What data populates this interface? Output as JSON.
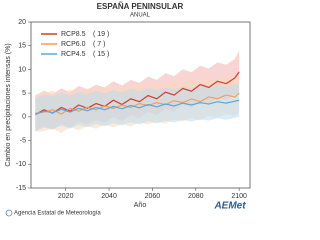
{
  "chart_data": {
    "type": "line",
    "title": "ESPAÑA PENINSULAR",
    "subtitle": "ANUAL",
    "ylabel": "Cambio en precipitaciones intensas (%)",
    "xlabel": "Año",
    "x": [
      2006,
      2010,
      2014,
      2018,
      2022,
      2026,
      2030,
      2034,
      2038,
      2042,
      2046,
      2050,
      2054,
      2058,
      2062,
      2066,
      2070,
      2074,
      2078,
      2082,
      2086,
      2090,
      2094,
      2098,
      2100
    ],
    "xlim": [
      2004,
      2105
    ],
    "xticks": [
      2020,
      2040,
      2060,
      2080,
      2100
    ],
    "ylim": [
      -15,
      20
    ],
    "yticks": [
      -15,
      -10,
      -5,
      0,
      5,
      10,
      15,
      20
    ],
    "series": [
      {
        "name": "RCP8.5",
        "models": "( 19 )",
        "color": "#d63a2a",
        "band_color": "#f2b3ae",
        "values": [
          0.5,
          1.5,
          0.8,
          2.0,
          1.2,
          2.5,
          1.8,
          2.8,
          2.2,
          3.5,
          2.6,
          3.8,
          3.2,
          4.5,
          3.8,
          5.2,
          4.6,
          6.0,
          5.4,
          6.8,
          6.2,
          7.5,
          7.0,
          8.2,
          9.5
        ],
        "upper": [
          4.5,
          5.5,
          4.8,
          6.0,
          5.2,
          6.5,
          5.8,
          6.8,
          6.2,
          7.5,
          6.6,
          7.8,
          7.2,
          8.5,
          7.8,
          9.2,
          8.6,
          10.0,
          9.4,
          10.8,
          10.2,
          11.5,
          11.0,
          12.2,
          14.0
        ],
        "lower": [
          -3.0,
          -2.0,
          -2.7,
          -1.5,
          -2.3,
          -1.0,
          -1.7,
          -0.7,
          -1.3,
          0.0,
          -0.9,
          0.3,
          -0.3,
          1.0,
          0.3,
          1.7,
          1.1,
          2.5,
          1.9,
          3.3,
          2.7,
          4.0,
          3.5,
          4.7,
          5.0
        ]
      },
      {
        "name": "RCP6.0",
        "models": "( 7 )",
        "color": "#f0a060",
        "band_color": "#f9d9b8",
        "values": [
          0.8,
          1.0,
          1.5,
          0.6,
          1.8,
          1.2,
          2.0,
          1.5,
          2.3,
          1.8,
          2.5,
          2.0,
          2.8,
          2.4,
          3.0,
          2.6,
          3.4,
          3.0,
          3.8,
          3.2,
          4.2,
          3.8,
          4.6,
          4.2,
          5.0
        ],
        "upper": [
          4.8,
          5.0,
          5.5,
          4.6,
          5.8,
          5.2,
          6.0,
          5.5,
          6.3,
          5.8,
          6.5,
          6.0,
          6.8,
          6.4,
          7.0,
          6.6,
          7.4,
          7.0,
          7.8,
          7.2,
          8.2,
          7.8,
          8.6,
          8.2,
          9.0
        ],
        "lower": [
          -3.2,
          -3.0,
          -2.5,
          -3.4,
          -2.2,
          -2.8,
          -2.0,
          -2.5,
          -1.7,
          -2.2,
          -1.5,
          -2.0,
          -1.2,
          -1.6,
          -1.0,
          -1.4,
          -0.6,
          -1.0,
          -0.2,
          -0.8,
          0.2,
          -0.2,
          0.6,
          0.2,
          1.0
        ]
      },
      {
        "name": "RCP4.5",
        "models": "( 15 )",
        "color": "#5aa8dc",
        "band_color": "#bcdcf2",
        "values": [
          0.5,
          1.2,
          0.9,
          1.6,
          1.0,
          1.8,
          1.3,
          2.0,
          1.5,
          2.2,
          1.7,
          2.4,
          1.9,
          2.6,
          2.1,
          2.7,
          2.3,
          2.9,
          2.5,
          3.0,
          2.7,
          3.2,
          2.9,
          3.3,
          3.5
        ],
        "upper": [
          4.0,
          4.7,
          4.4,
          5.1,
          4.5,
          5.3,
          4.8,
          5.5,
          5.0,
          5.7,
          5.2,
          5.9,
          5.4,
          6.1,
          5.6,
          6.2,
          5.8,
          6.4,
          6.0,
          6.5,
          6.2,
          6.7,
          6.4,
          6.8,
          7.0
        ],
        "lower": [
          -3.0,
          -2.3,
          -2.6,
          -1.9,
          -2.5,
          -1.7,
          -2.2,
          -1.5,
          -2.0,
          -1.3,
          -1.8,
          -1.1,
          -1.6,
          -0.9,
          -1.4,
          -0.8,
          -1.2,
          -0.6,
          -1.0,
          -0.5,
          -0.8,
          -0.3,
          -0.6,
          -0.2,
          0.0
        ]
      }
    ]
  },
  "footer": {
    "agency": "Agencia Estatal de Meteorología",
    "logo": "AEMet"
  }
}
